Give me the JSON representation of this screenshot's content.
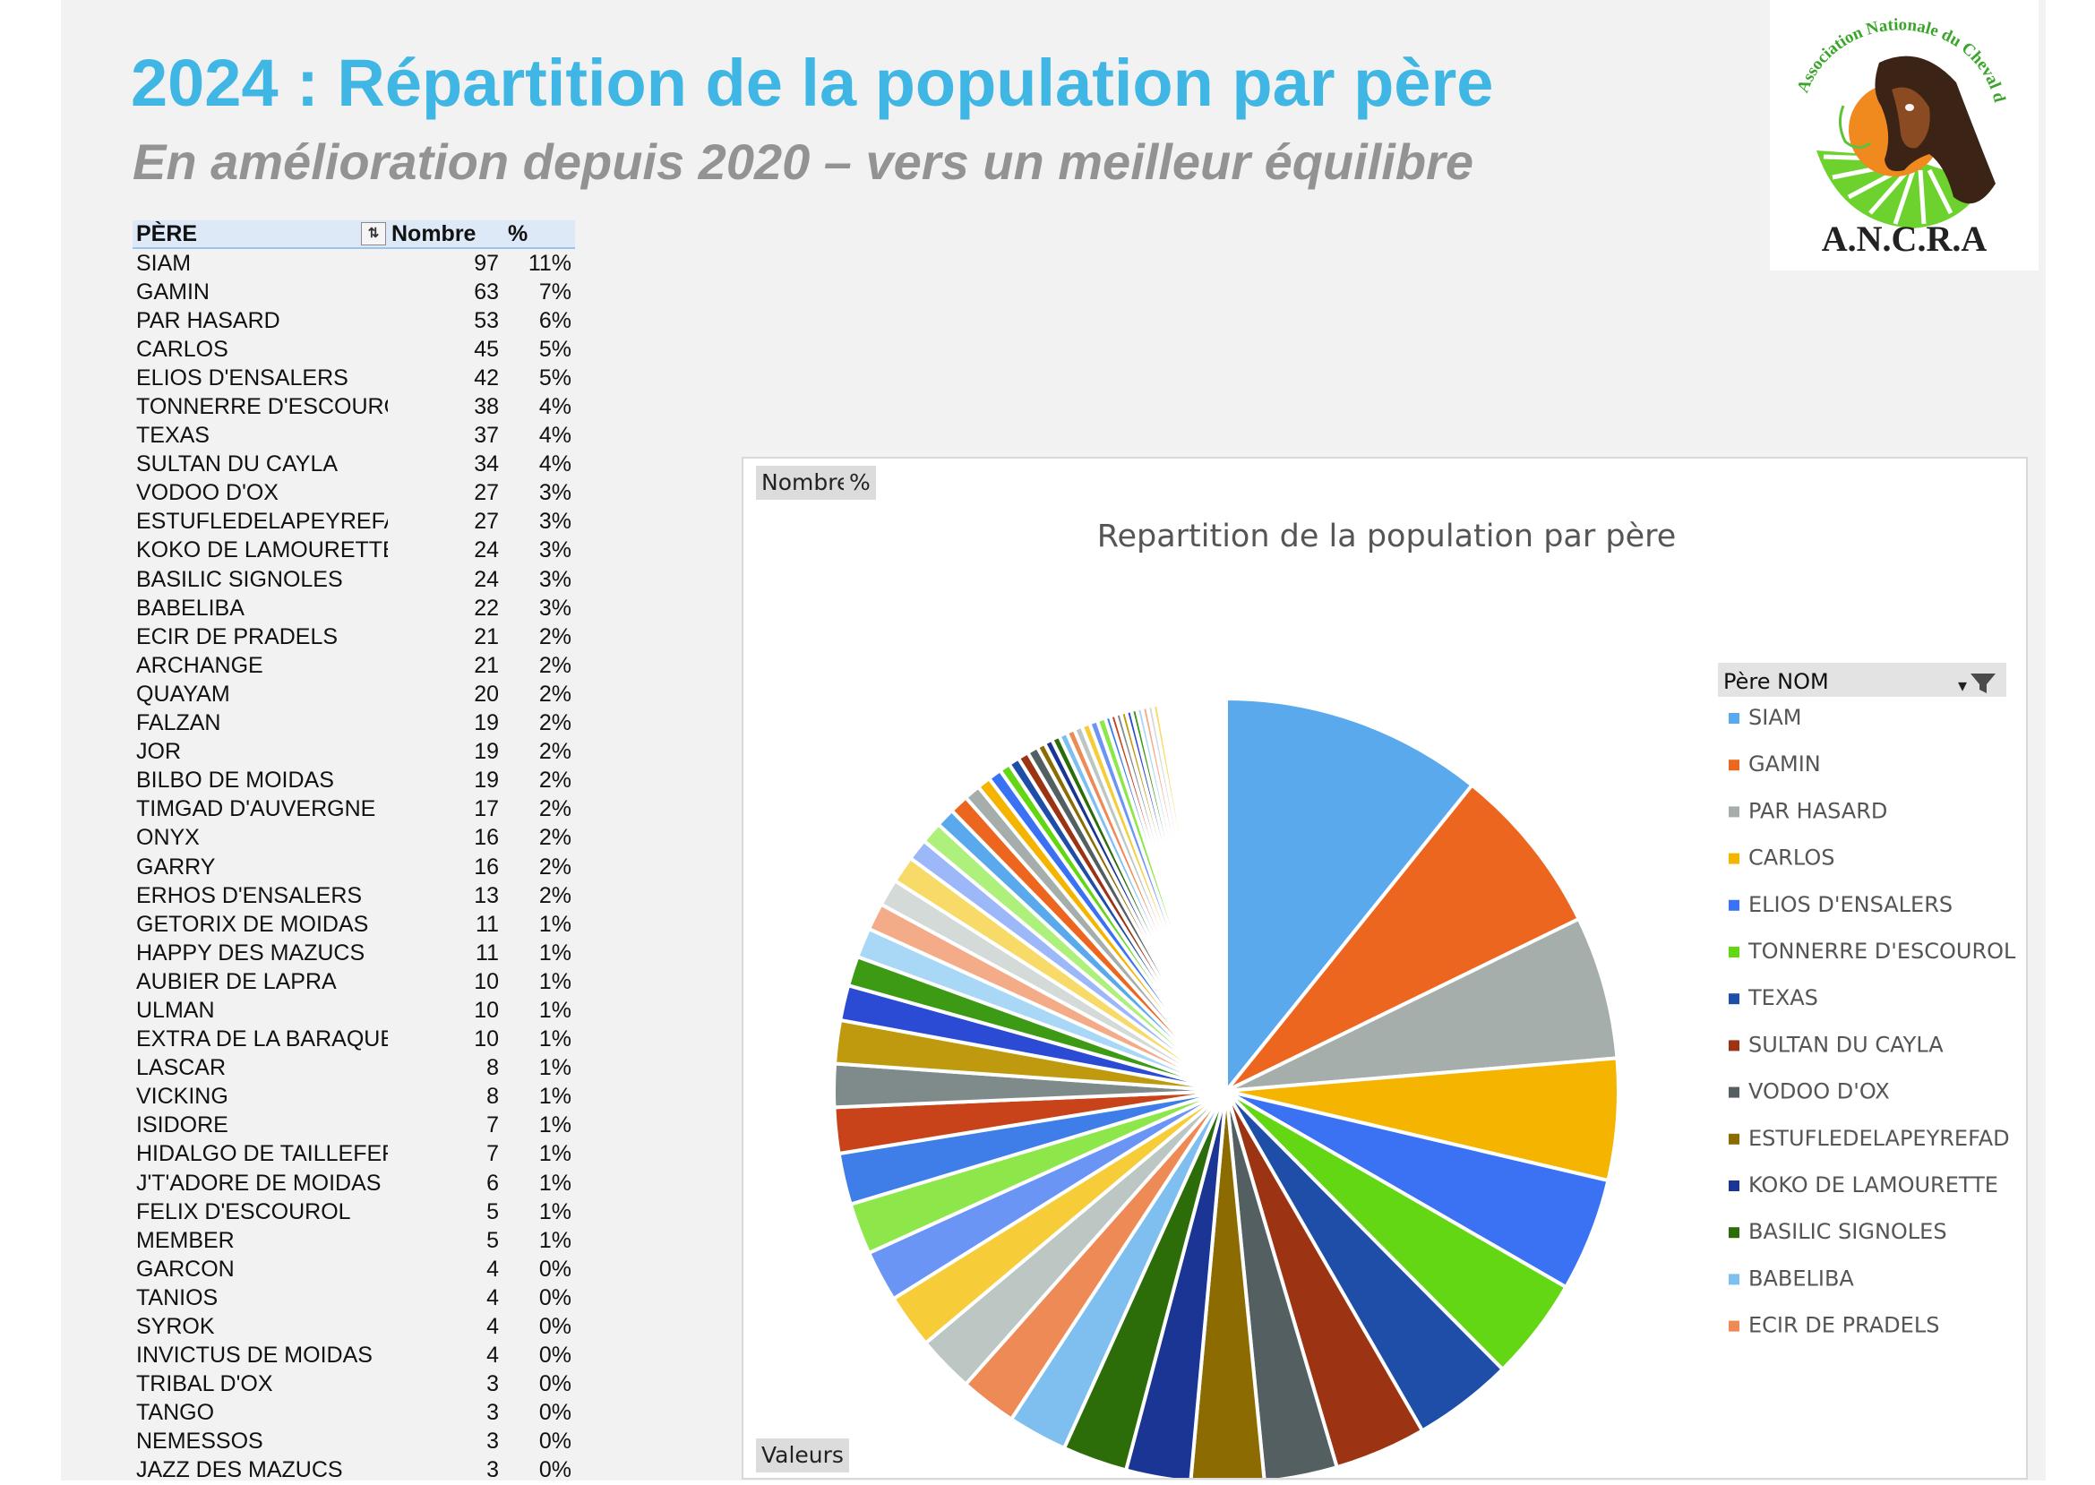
{
  "page": {
    "title": "2024 : Répartition de la population par père",
    "subtitle": "En amélioration depuis 2020 – vers un meilleur équilibre",
    "logo": {
      "arc_text": "Association Nationale du Cheval de Race Auvergne",
      "initials": "A.N.C.R.A"
    }
  },
  "pivot": {
    "col_pere": "PÈRE",
    "col_nombre": "Nombre",
    "col_pct": "%",
    "rows": [
      {
        "name": "SIAM",
        "n": 97,
        "pct": "11%"
      },
      {
        "name": "GAMIN",
        "n": 63,
        "pct": "7%"
      },
      {
        "name": "PAR HASARD",
        "n": 53,
        "pct": "6%"
      },
      {
        "name": "CARLOS",
        "n": 45,
        "pct": "5%"
      },
      {
        "name": "ELIOS D'ENSALERS",
        "n": 42,
        "pct": "5%"
      },
      {
        "name": "TONNERRE D'ESCOUROL",
        "n": 38,
        "pct": "4%"
      },
      {
        "name": "TEXAS",
        "n": 37,
        "pct": "4%"
      },
      {
        "name": "SULTAN DU CAYLA",
        "n": 34,
        "pct": "4%"
      },
      {
        "name": "VODOO D'OX",
        "n": 27,
        "pct": "3%"
      },
      {
        "name": "ESTUFLEDELAPEYREFAD",
        "n": 27,
        "pct": "3%"
      },
      {
        "name": "KOKO DE LAMOURETTE",
        "n": 24,
        "pct": "3%"
      },
      {
        "name": "BASILIC SIGNOLES",
        "n": 24,
        "pct": "3%"
      },
      {
        "name": "BABELIBA",
        "n": 22,
        "pct": "3%"
      },
      {
        "name": "ECIR DE PRADELS",
        "n": 21,
        "pct": "2%"
      },
      {
        "name": "ARCHANGE",
        "n": 21,
        "pct": "2%"
      },
      {
        "name": "QUAYAM",
        "n": 20,
        "pct": "2%"
      },
      {
        "name": "FALZAN",
        "n": 19,
        "pct": "2%"
      },
      {
        "name": "JOR",
        "n": 19,
        "pct": "2%"
      },
      {
        "name": "BILBO DE MOIDAS",
        "n": 19,
        "pct": "2%"
      },
      {
        "name": "TIMGAD D'AUVERGNE",
        "n": 17,
        "pct": "2%"
      },
      {
        "name": "ONYX",
        "n": 16,
        "pct": "2%"
      },
      {
        "name": "GARRY",
        "n": 16,
        "pct": "2%"
      },
      {
        "name": "ERHOS D'ENSALERS",
        "n": 13,
        "pct": "2%"
      },
      {
        "name": "GETORIX DE MOIDAS",
        "n": 11,
        "pct": "1%"
      },
      {
        "name": "HAPPY DES MAZUCS",
        "n": 11,
        "pct": "1%"
      },
      {
        "name": "AUBIER DE LAPRA",
        "n": 10,
        "pct": "1%"
      },
      {
        "name": "ULMAN",
        "n": 10,
        "pct": "1%"
      },
      {
        "name": "EXTRA DE LA BARAQUE",
        "n": 10,
        "pct": "1%"
      },
      {
        "name": "LASCAR",
        "n": 8,
        "pct": "1%"
      },
      {
        "name": "VICKING",
        "n": 8,
        "pct": "1%"
      },
      {
        "name": "ISIDORE",
        "n": 7,
        "pct": "1%"
      },
      {
        "name": "HIDALGO DE TAILLEFER",
        "n": 7,
        "pct": "1%"
      },
      {
        "name": "J'T'ADORE DE MOIDAS",
        "n": 6,
        "pct": "1%"
      },
      {
        "name": "FELIX D'ESCOUROL",
        "n": 5,
        "pct": "1%"
      },
      {
        "name": "MEMBER",
        "n": 5,
        "pct": "1%"
      },
      {
        "name": "GARCON",
        "n": 4,
        "pct": "0%"
      },
      {
        "name": "TANIOS",
        "n": 4,
        "pct": "0%"
      },
      {
        "name": "SYROK",
        "n": 4,
        "pct": "0%"
      },
      {
        "name": "INVICTUS DE MOIDAS",
        "n": 4,
        "pct": "0%"
      },
      {
        "name": "TRIBAL D'OX",
        "n": 3,
        "pct": "0%"
      },
      {
        "name": "TANGO",
        "n": 3,
        "pct": "0%"
      },
      {
        "name": "NEMESSOS",
        "n": 3,
        "pct": "0%"
      },
      {
        "name": "JAZZ DES MAZUCS",
        "n": 3,
        "pct": "0%"
      }
    ]
  },
  "chart_panel": {
    "field_nombre": "Nombre",
    "field_pct": "%",
    "field_valeurs": "Valeurs",
    "legend_title": "Père NOM"
  },
  "chart_data": {
    "type": "pie",
    "title": "Repartition de la population par père",
    "legend_position": "right",
    "categories": [
      "SIAM",
      "GAMIN",
      "PAR HASARD",
      "CARLOS",
      "ELIOS D'ENSALERS",
      "TONNERRE D'ESCOUROL",
      "TEXAS",
      "SULTAN DU CAYLA",
      "VODOO D'OX",
      "ESTUFLEDELAPEYREFAD",
      "KOKO DE LAMOURETTE",
      "BASILIC SIGNOLES",
      "BABELIBA",
      "ECIR DE PRADELS",
      "ARCHANGE",
      "QUAYAM",
      "FALZAN",
      "JOR",
      "BILBO DE MOIDAS",
      "TIMGAD D'AUVERGNE",
      "ONYX",
      "GARRY",
      "ERHOS D'ENSALERS",
      "GETORIX DE MOIDAS",
      "HAPPY DES MAZUCS",
      "AUBIER DE LAPRA",
      "ULMAN",
      "EXTRA DE LA BARAQUE",
      "LASCAR",
      "VICKING",
      "ISIDORE",
      "HIDALGO DE TAILLEFER",
      "J'T'ADORE DE MOIDAS",
      "FELIX D'ESCOUROL",
      "MEMBER",
      "GARCON",
      "TANIOS",
      "SYROK",
      "INVICTUS DE MOIDAS",
      "TRIBAL D'OX",
      "TANGO",
      "NEMESSOS",
      "JAZZ DES MAZUCS"
    ],
    "values": [
      97,
      63,
      53,
      45,
      42,
      38,
      37,
      34,
      27,
      27,
      24,
      24,
      22,
      21,
      21,
      20,
      19,
      19,
      19,
      17,
      16,
      16,
      13,
      11,
      11,
      10,
      10,
      10,
      8,
      8,
      7,
      7,
      6,
      5,
      5,
      4,
      4,
      4,
      4,
      3,
      3,
      3,
      3
    ],
    "tail_slices": [
      3,
      3,
      3,
      3,
      3,
      2,
      2,
      2,
      2,
      2,
      2,
      2,
      2,
      2,
      2,
      1,
      1,
      1,
      1,
      1,
      1,
      1,
      1,
      1,
      1,
      1,
      1,
      1,
      1,
      1,
      1,
      1,
      1,
      1,
      1,
      1,
      1,
      1,
      1,
      1
    ],
    "legend_entries": [
      "SIAM",
      "GAMIN",
      "PAR HASARD",
      "CARLOS",
      "ELIOS D'ENSALERS",
      "TONNERRE D'ESCOUROL",
      "TEXAS",
      "SULTAN DU CAYLA",
      "VODOO D'OX",
      "ESTUFLEDELAPEYREFAD",
      "KOKO DE LAMOURETTE",
      "BASILIC SIGNOLES",
      "BABELIBA",
      "ECIR DE PRADELS"
    ],
    "palette": [
      "#5ba9ed",
      "#ec6620",
      "#a5aeab",
      "#f5b400",
      "#3b72f3",
      "#64d715",
      "#1f4ea8",
      "#9c3312",
      "#535f60",
      "#8c6b00",
      "#1b3595",
      "#2c6d0a",
      "#7fbff0",
      "#ee8a55",
      "#bcc6c3",
      "#f6cc38",
      "#6a95f5",
      "#8de64a",
      "#3f7ee8",
      "#c9431a",
      "#7f8a8a",
      "#c09a0e",
      "#2c4bd4",
      "#3d9a14",
      "#a8d8f6",
      "#f4ab88",
      "#d4dad8",
      "#f8da68",
      "#9db8f8",
      "#aef07c"
    ]
  }
}
